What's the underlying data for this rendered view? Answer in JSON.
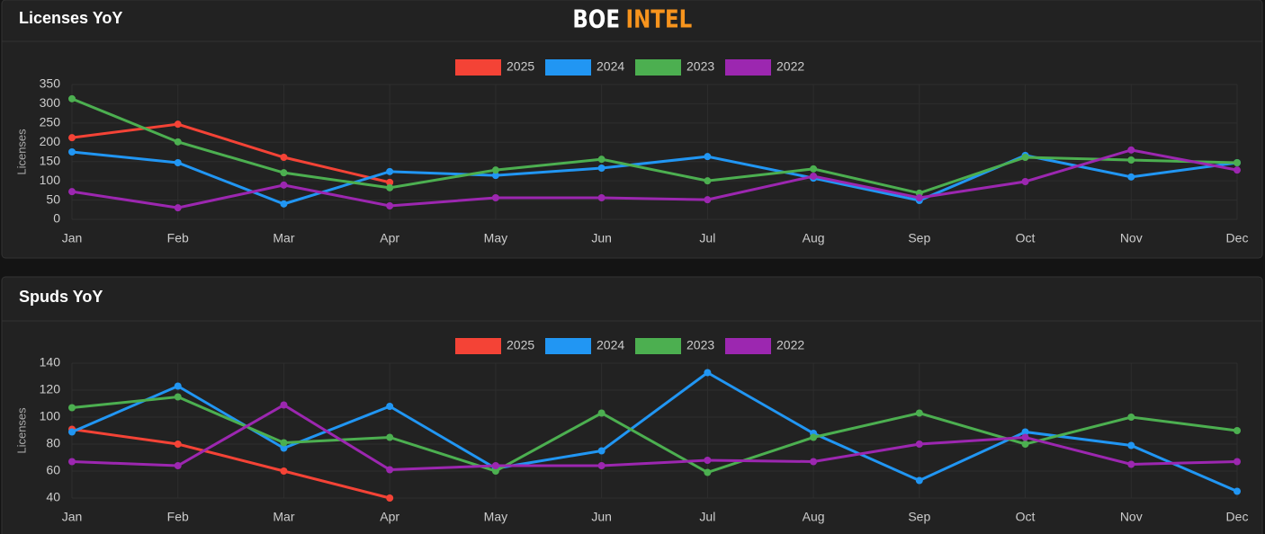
{
  "header": {
    "logo_left": "BOE",
    "logo_right": "INTEL"
  },
  "chart_data": [
    {
      "type": "line",
      "title": "Licenses YoY",
      "y_label": "Licenses",
      "categories": [
        "Jan",
        "Feb",
        "Mar",
        "Apr",
        "May",
        "Jun",
        "Jul",
        "Aug",
        "Sep",
        "Oct",
        "Nov",
        "Dec"
      ],
      "ylim": [
        0,
        350
      ],
      "yticks": [
        0,
        50,
        100,
        150,
        200,
        250,
        300,
        350
      ],
      "grid": true,
      "legend": "top",
      "series": [
        {
          "name": "2025",
          "color": "#f44336",
          "values": [
            212,
            247,
            161,
            96,
            null,
            null,
            null,
            null,
            null,
            null,
            null,
            null
          ]
        },
        {
          "name": "2024",
          "color": "#2196f3",
          "values": [
            175,
            147,
            40,
            124,
            114,
            133,
            163,
            107,
            49,
            166,
            110,
            147
          ]
        },
        {
          "name": "2023",
          "color": "#4caf50",
          "values": [
            313,
            201,
            121,
            82,
            128,
            156,
            100,
            131,
            68,
            161,
            154,
            147
          ]
        },
        {
          "name": "2022",
          "color": "#9c27b0",
          "values": [
            72,
            30,
            89,
            35,
            56,
            56,
            51,
            112,
            56,
            98,
            180,
            128
          ]
        }
      ]
    },
    {
      "type": "line",
      "title": "Spuds YoY",
      "y_label": "Licenses",
      "categories": [
        "Jan",
        "Feb",
        "Mar",
        "Apr",
        "May",
        "Jun",
        "Jul",
        "Aug",
        "Sep",
        "Oct",
        "Nov",
        "Dec"
      ],
      "ylim": [
        40,
        140
      ],
      "yticks": [
        40,
        60,
        80,
        100,
        120,
        140
      ],
      "grid": true,
      "legend": "top",
      "series": [
        {
          "name": "2025",
          "color": "#f44336",
          "values": [
            91,
            80,
            60,
            40,
            null,
            null,
            null,
            null,
            null,
            null,
            null,
            null
          ]
        },
        {
          "name": "2024",
          "color": "#2196f3",
          "values": [
            89,
            123,
            77,
            108,
            62,
            75,
            133,
            88,
            53,
            89,
            79,
            45
          ]
        },
        {
          "name": "2023",
          "color": "#4caf50",
          "values": [
            107,
            115,
            81,
            85,
            60,
            103,
            59,
            85,
            103,
            80,
            100,
            90
          ]
        },
        {
          "name": "2022",
          "color": "#9c27b0",
          "values": [
            67,
            64,
            109,
            61,
            64,
            64,
            68,
            67,
            80,
            85,
            65,
            67
          ]
        }
      ]
    }
  ]
}
